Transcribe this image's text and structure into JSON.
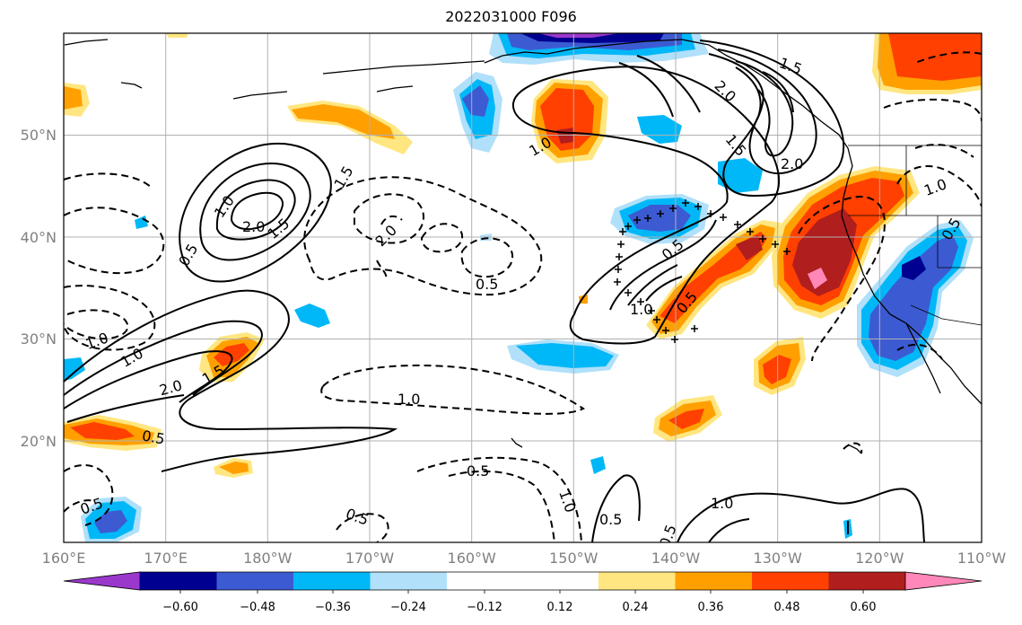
{
  "title": "2022031000 F096",
  "lon_ticks": [
    "160°E",
    "170°E",
    "180°W",
    "170°W",
    "160°W",
    "150°W",
    "140°W",
    "130°W",
    "120°W",
    "110°W"
  ],
  "lat_ticks": [
    "50°N",
    "40°N",
    "30°N",
    "20°N"
  ],
  "colorbar": {
    "colors": [
      "#9a38cc",
      "#000090",
      "#3c5bd2",
      "#00b8f8",
      "#b0e0fa",
      "#ffffff",
      "#ffe680",
      "#ffa000",
      "#ff4000",
      "#b01e1e",
      "#ff88b8"
    ],
    "labels": [
      "−0.60",
      "−0.48",
      "−0.36",
      "−0.24",
      "−0.12",
      "0.12",
      "0.24",
      "0.36",
      "0.48",
      "0.60"
    ]
  },
  "contour_labels": [
    "1.0",
    "2.0",
    "1.5",
    "1.0",
    "0.5",
    "1.5",
    "2.0",
    "0.5",
    "1.0",
    "1.5",
    "2.0",
    "0.5",
    "1.0",
    "0.5",
    "1.0",
    "0.5",
    "1.0",
    "1.5",
    "2.0",
    "0.5",
    "2.0",
    "1.5",
    "1.0",
    "0.5",
    "0.5",
    "0.5",
    "1.0",
    "0.5",
    "1.0",
    "0.5",
    "0.5",
    "0.5",
    "0.5",
    "1.0"
  ],
  "colors": {
    "accent": "#000000",
    "grid": "#b0b0b0",
    "tick_text": "#808080"
  }
}
